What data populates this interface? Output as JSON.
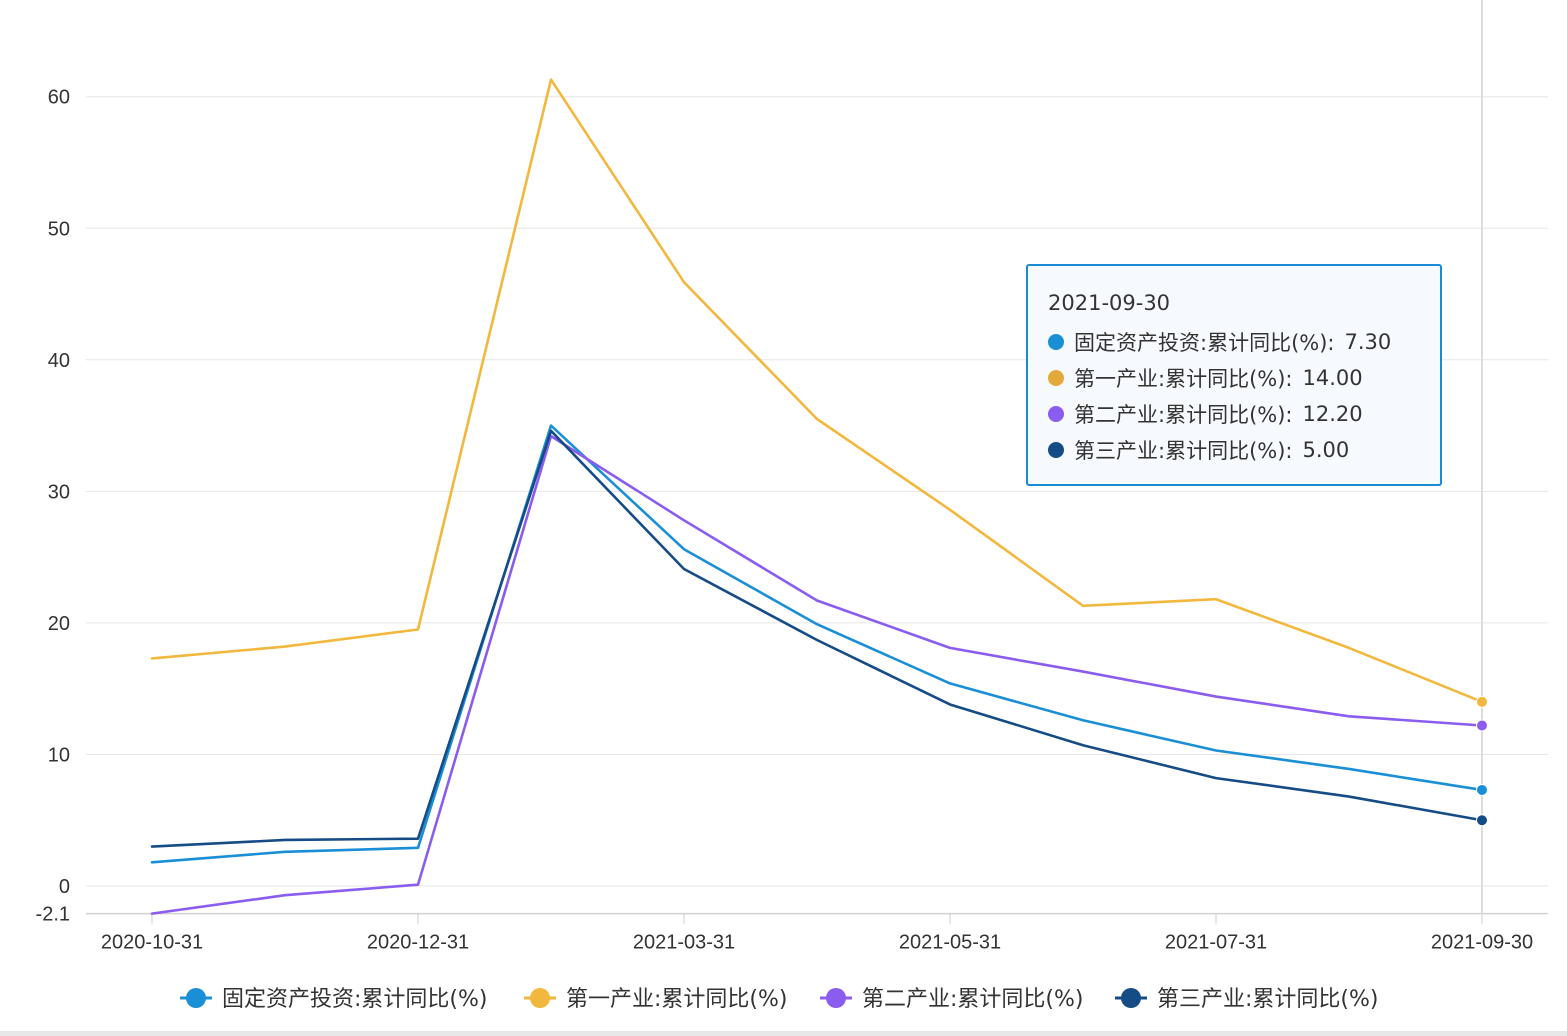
{
  "chart_data": {
    "type": "line",
    "x": [
      "2020-10-31",
      "2020-11-30",
      "2020-12-31",
      "2021-02-28",
      "2021-03-31",
      "2021-04-30",
      "2021-05-31",
      "2021-06-30",
      "2021-07-31",
      "2021-08-31",
      "2021-09-30"
    ],
    "x_ticks": [
      "2020-10-31",
      "2020-12-31",
      "2021-03-31",
      "2021-05-31",
      "2021-07-31",
      "2021-09-30"
    ],
    "y_ticks": [
      60,
      50,
      40,
      30,
      20,
      10,
      0,
      -2.1
    ],
    "ylim": [
      -2.1,
      66
    ],
    "grid": true,
    "legend_position": "bottom",
    "series": [
      {
        "name": "固定资产投资:累计同比(%)",
        "color": "#1a8fd6",
        "values": [
          1.8,
          2.6,
          2.9,
          35.0,
          25.6,
          19.9,
          15.4,
          12.6,
          10.3,
          8.9,
          7.3
        ]
      },
      {
        "name": "第一产业:累计同比(%)",
        "color": "#f2b83e",
        "values": [
          17.3,
          18.2,
          19.5,
          61.3,
          45.9,
          35.5,
          28.6,
          21.3,
          21.8,
          18.1,
          14.0
        ]
      },
      {
        "name": "第二产业:累计同比(%)",
        "color": "#8a5cf0",
        "values": [
          -2.1,
          -0.7,
          0.1,
          34.2,
          27.8,
          21.7,
          18.1,
          16.3,
          14.4,
          12.9,
          12.2
        ]
      },
      {
        "name": "第三产业:累计同比(%)",
        "color": "#154c85",
        "values": [
          3.0,
          3.5,
          3.6,
          34.6,
          24.1,
          18.7,
          13.8,
          10.7,
          8.2,
          6.8,
          5.0
        ]
      }
    ]
  },
  "tooltip": {
    "date": "2021-09-30",
    "items": [
      {
        "label": "固定资产投资:累计同比(%):",
        "value": "7.30",
        "color": "#1a8fd6"
      },
      {
        "label": "第一产业:累计同比(%):",
        "value": "14.00",
        "color": "#e3a93a"
      },
      {
        "label": "第二产业:累计同比(%):",
        "value": "12.20",
        "color": "#8a5cf0"
      },
      {
        "label": "第三产业:累计同比(%):",
        "value": "5.00",
        "color": "#154c85"
      }
    ]
  }
}
